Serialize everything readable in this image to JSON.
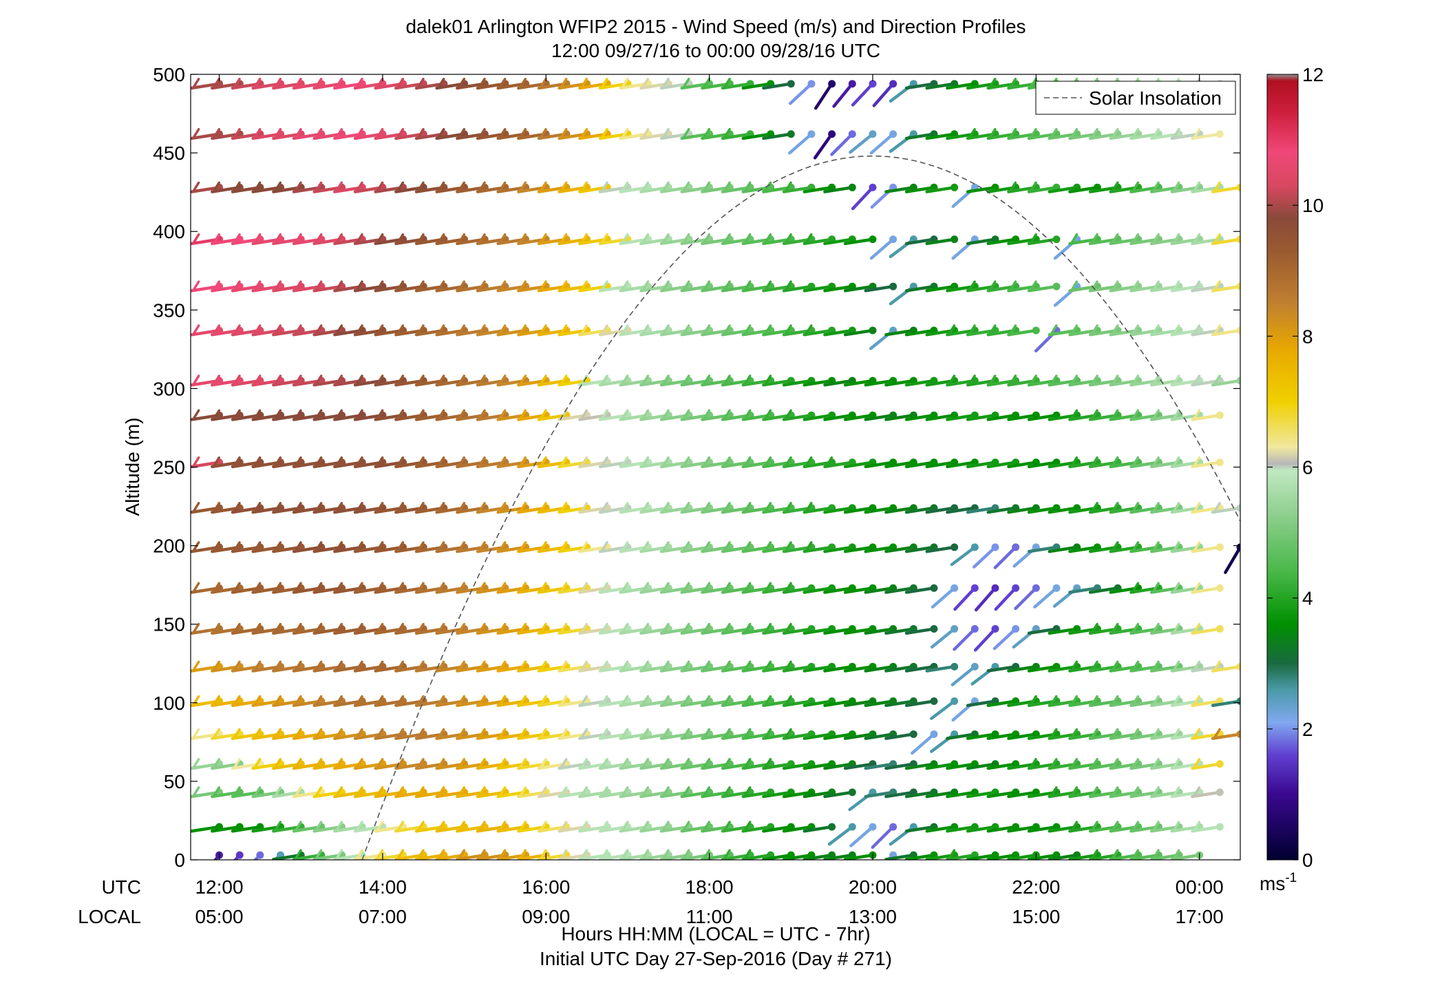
{
  "chart_data": {
    "type": "wind-barb profile",
    "title": "dalek01 Arlington WFIP2 2015 - Wind Speed (m/s) and Direction Profiles",
    "subtitle": "12:00 09/27/16 to 00:00 09/28/16  UTC",
    "ylabel": "Altitude (m)",
    "xlabel": "Hours HH:MM  (LOCAL = UTC - 7hr)",
    "xlabel2": "Initial UTC Day 27-Sep-2016 (Day # 271)",
    "utc_label": "UTC",
    "local_label": "LOCAL",
    "xlim": [
      11.65,
      24.5
    ],
    "ylim": [
      0,
      500
    ],
    "yticks": [
      0,
      50,
      100,
      150,
      200,
      250,
      300,
      350,
      400,
      450,
      500
    ],
    "xticks": [
      12,
      14,
      16,
      18,
      20,
      22,
      24
    ],
    "xticks_utc": [
      "12:00",
      "14:00",
      "16:00",
      "18:00",
      "20:00",
      "22:00",
      "00:00"
    ],
    "xticks_local": [
      "05:00",
      "07:00",
      "09:00",
      "11:00",
      "13:00",
      "15:00",
      "17:00"
    ],
    "legend": {
      "label": "Solar Insolation",
      "position": "top-right"
    },
    "colorbar": {
      "range": [
        0,
        12
      ],
      "ticks": [
        0,
        2,
        4,
        6,
        8,
        10,
        12
      ],
      "unit": "ms",
      "unit_superscript": "-1",
      "stops": [
        {
          "v": 0.0,
          "c": "#000030"
        },
        {
          "v": 1.0,
          "c": "#3a0890"
        },
        {
          "v": 1.6,
          "c": "#6040d0"
        },
        {
          "v": 2.1,
          "c": "#80a8f0"
        },
        {
          "v": 2.6,
          "c": "#4a9aa8"
        },
        {
          "v": 3.0,
          "c": "#1a6a40"
        },
        {
          "v": 3.6,
          "c": "#009000"
        },
        {
          "v": 4.4,
          "c": "#48b848"
        },
        {
          "v": 5.3,
          "c": "#90d090"
        },
        {
          "v": 5.95,
          "c": "#c0e8c0"
        },
        {
          "v": 6.05,
          "c": "#b8b8b8"
        },
        {
          "v": 6.3,
          "c": "#f0e8a0"
        },
        {
          "v": 7.0,
          "c": "#f0d000"
        },
        {
          "v": 7.8,
          "c": "#e8a800"
        },
        {
          "v": 8.5,
          "c": "#c08030"
        },
        {
          "v": 9.3,
          "c": "#9a5a30"
        },
        {
          "v": 9.8,
          "c": "#8a4a3a"
        },
        {
          "v": 10.3,
          "c": "#d84860"
        },
        {
          "v": 10.8,
          "c": "#f04878"
        },
        {
          "v": 11.4,
          "c": "#d02040"
        },
        {
          "v": 11.9,
          "c": "#b01020"
        },
        {
          "v": 12.0,
          "c": "#909090"
        }
      ]
    },
    "solar_insolation": {
      "sunrise_hour": 13.75,
      "peak_hour": 20.0,
      "peak_altitude": 448,
      "style": "dashed"
    },
    "altitudes": [
      3,
      21,
      43,
      61,
      80,
      101,
      123,
      147,
      173,
      199,
      224,
      253,
      283,
      305,
      337,
      365,
      395,
      428,
      462,
      494
    ],
    "time_start_hour": 12.0,
    "time_step_hours": 0.25,
    "wind_speed_rows": [
      [
        1.2,
        1.5,
        1.8,
        2.5,
        3.2,
        4.2,
        5.0,
        5.8,
        6.4,
        6.8,
        7.4,
        7.6,
        7.8,
        8.2,
        8.2,
        8.0,
        7.6,
        6.8,
        6.2,
        5.8,
        5.8,
        5.6,
        5.4,
        5.2,
        5.0,
        4.6,
        4.2,
        4.0,
        3.6,
        3.6,
        3.4,
        3.4,
        3.6,
        2.2,
        3.2,
        3.6,
        3.8,
        4.0,
        3.6,
        3.6,
        3.8,
        3.6,
        3.4,
        3.8,
        4.0,
        4.4,
        4.6,
        4.8,
        5.0
      ],
      [
        3.6,
        3.6,
        3.6,
        3.8,
        4.2,
        4.8,
        5.2,
        5.6,
        5.8,
        6.4,
        6.8,
        7.2,
        7.4,
        7.4,
        7.6,
        7.4,
        7.0,
        6.6,
        6.2,
        5.8,
        5.8,
        5.6,
        5.4,
        5.2,
        4.8,
        4.6,
        4.2,
        4.0,
        3.6,
        3.6,
        3.2,
        2.6,
        2.2,
        1.8,
        2.6,
        3.2,
        3.6,
        3.8,
        3.8,
        3.6,
        3.6,
        3.6,
        3.8,
        4.0,
        4.4,
        4.6,
        4.8,
        5.2,
        5.6,
        5.8
      ],
      [
        5.0,
        4.6,
        4.6,
        5.0,
        5.6,
        6.4,
        7.0,
        7.4,
        7.4,
        7.6,
        7.8,
        7.8,
        7.8,
        7.6,
        7.4,
        7.0,
        6.6,
        6.2,
        5.8,
        5.6,
        5.6,
        5.4,
        5.2,
        5.0,
        4.6,
        4.4,
        4.2,
        4.0,
        3.8,
        3.6,
        3.4,
        3.2,
        2.6,
        2.8,
        3.0,
        3.2,
        3.4,
        3.6,
        3.8,
        3.6,
        3.6,
        3.8,
        4.0,
        4.2,
        4.6,
        4.8,
        5.0,
        5.4,
        5.8,
        6.1
      ],
      [
        5.4,
        5.2,
        6.3,
        7.0,
        7.4,
        7.6,
        7.6,
        7.8,
        8.0,
        8.2,
        8.4,
        8.4,
        8.2,
        8.0,
        7.6,
        7.2,
        6.8,
        6.4,
        6.0,
        5.8,
        5.6,
        5.4,
        5.2,
        5.0,
        4.8,
        4.6,
        4.4,
        4.2,
        4.0,
        3.8,
        3.6,
        3.4,
        3.0,
        2.8,
        3.0,
        3.4,
        3.6,
        3.6,
        3.4,
        3.6,
        3.8,
        4.0,
        4.2,
        4.4,
        4.6,
        4.8,
        5.0,
        5.4,
        5.8,
        6.8
      ],
      [
        6.4,
        6.8,
        7.2,
        7.4,
        7.6,
        7.8,
        8.0,
        8.2,
        8.4,
        8.6,
        8.6,
        8.6,
        8.4,
        8.2,
        8.0,
        7.6,
        7.2,
        6.8,
        6.4,
        6.0,
        5.8,
        5.6,
        5.4,
        5.2,
        5.0,
        4.8,
        4.6,
        4.4,
        4.2,
        4.0,
        3.8,
        3.6,
        3.4,
        3.2,
        3.0,
        2.2,
        2.6,
        3.2,
        3.6,
        3.6,
        3.6,
        3.8,
        4.0,
        4.2,
        4.6,
        4.8,
        5.0,
        5.4,
        5.8,
        6.8,
        8.4
      ],
      [
        7.4,
        7.6,
        7.8,
        8.0,
        8.2,
        8.4,
        8.6,
        8.8,
        8.8,
        8.8,
        8.8,
        8.6,
        8.4,
        8.2,
        8.0,
        7.6,
        7.2,
        6.8,
        6.4,
        6.0,
        5.8,
        5.6,
        5.4,
        5.2,
        5.0,
        4.8,
        4.6,
        4.4,
        4.2,
        4.0,
        3.8,
        3.6,
        3.4,
        3.4,
        3.2,
        3.0,
        2.6,
        2.2,
        3.0,
        3.6,
        3.8,
        4.0,
        4.2,
        4.4,
        4.6,
        4.8,
        5.0,
        5.4,
        5.8,
        6.6,
        2.8
      ],
      [
        8.0,
        8.2,
        8.4,
        8.6,
        8.6,
        8.8,
        8.8,
        9.0,
        9.0,
        9.0,
        8.8,
        8.6,
        8.4,
        8.2,
        8.0,
        7.8,
        7.4,
        7.0,
        6.6,
        6.2,
        5.8,
        5.6,
        5.4,
        5.2,
        5.0,
        4.8,
        4.6,
        4.4,
        4.2,
        4.0,
        3.8,
        3.6,
        3.6,
        3.4,
        3.2,
        3.0,
        2.8,
        2.4,
        2.6,
        3.0,
        3.4,
        3.6,
        3.8,
        4.0,
        4.2,
        4.4,
        4.6,
        4.8,
        5.4,
        6.0,
        6.6
      ],
      [
        8.8,
        8.8,
        9.0,
        9.0,
        9.0,
        9.0,
        9.2,
        9.2,
        9.2,
        9.0,
        9.0,
        8.8,
        8.6,
        8.4,
        8.2,
        8.0,
        7.6,
        7.2,
        6.8,
        6.2,
        5.8,
        5.6,
        5.4,
        5.2,
        5.0,
        4.8,
        4.6,
        4.4,
        4.2,
        4.0,
        3.8,
        3.6,
        3.6,
        3.4,
        3.2,
        3.0,
        2.4,
        1.8,
        1.6,
        2.0,
        2.4,
        3.0,
        3.6,
        3.8,
        4.0,
        4.2,
        4.6,
        5.0,
        5.6,
        6.6
      ],
      [
        9.0,
        9.0,
        9.2,
        9.2,
        9.2,
        9.4,
        9.4,
        9.4,
        9.2,
        9.2,
        9.0,
        8.8,
        8.6,
        8.4,
        8.2,
        8.0,
        7.6,
        7.2,
        6.8,
        6.2,
        5.8,
        5.6,
        5.4,
        5.2,
        5.0,
        4.8,
        4.6,
        4.4,
        4.2,
        4.0,
        3.8,
        3.6,
        3.6,
        3.4,
        3.2,
        3.0,
        2.2,
        1.6,
        1.4,
        1.6,
        1.8,
        2.2,
        2.4,
        2.8,
        3.2,
        3.6,
        4.0,
        4.6,
        5.4,
        6.4
      ],
      [
        9.4,
        9.4,
        9.4,
        9.4,
        9.4,
        9.6,
        9.6,
        9.6,
        9.4,
        9.4,
        9.2,
        9.0,
        8.8,
        8.6,
        8.4,
        8.2,
        7.8,
        7.4,
        7.0,
        6.4,
        6.0,
        5.8,
        5.6,
        5.4,
        5.2,
        5.0,
        4.8,
        4.6,
        4.4,
        4.2,
        4.0,
        3.8,
        3.6,
        3.6,
        3.4,
        3.2,
        3.0,
        2.6,
        2.0,
        1.8,
        2.2,
        2.8,
        3.4,
        3.6,
        3.8,
        4.0,
        4.4,
        4.8,
        5.4,
        6.4,
        0.3
      ],
      [
        9.4,
        9.4,
        9.6,
        9.6,
        9.6,
        9.6,
        9.6,
        9.6,
        9.6,
        9.4,
        9.4,
        9.2,
        9.0,
        8.8,
        8.4,
        8.2,
        7.8,
        7.4,
        7.0,
        6.2,
        6.0,
        5.8,
        5.6,
        5.4,
        5.2,
        5.0,
        4.8,
        4.6,
        4.4,
        4.2,
        4.0,
        3.8,
        3.6,
        3.6,
        3.4,
        3.2,
        3.0,
        3.0,
        2.8,
        3.2,
        3.4,
        3.6,
        3.6,
        3.8,
        4.0,
        4.2,
        4.6,
        5.0,
        5.6,
        6.4,
        6.0
      ],
      [
        10.3,
        9.6,
        9.6,
        9.6,
        9.6,
        9.6,
        9.6,
        9.6,
        9.6,
        9.6,
        9.4,
        9.2,
        9.0,
        8.8,
        8.6,
        8.4,
        8.0,
        7.4,
        6.8,
        6.2,
        6.0,
        5.8,
        5.6,
        5.4,
        5.2,
        5.0,
        4.8,
        4.6,
        4.4,
        4.2,
        4.0,
        4.0,
        3.8,
        3.6,
        3.6,
        3.6,
        3.6,
        3.6,
        3.8,
        3.8,
        3.6,
        3.6,
        3.8,
        4.0,
        4.2,
        4.4,
        4.8,
        5.2,
        5.6,
        6.4
      ],
      [
        9.8,
        9.8,
        9.8,
        9.8,
        9.8,
        9.8,
        9.8,
        9.8,
        9.8,
        9.6,
        9.4,
        9.2,
        9.0,
        8.8,
        8.6,
        8.2,
        7.8,
        7.2,
        6.2,
        6.1,
        5.8,
        5.6,
        5.4,
        5.2,
        5.0,
        4.8,
        4.6,
        4.4,
        4.2,
        4.0,
        3.8,
        3.6,
        3.6,
        3.4,
        3.4,
        3.6,
        3.6,
        3.8,
        3.8,
        3.6,
        3.6,
        3.6,
        3.8,
        4.0,
        4.2,
        4.4,
        4.8,
        5.2,
        5.6,
        6.4
      ],
      [
        10.6,
        10.6,
        10.4,
        10.4,
        10.2,
        10.2,
        10.0,
        10.0,
        9.8,
        9.6,
        9.4,
        9.2,
        9.0,
        8.8,
        8.6,
        8.4,
        8.0,
        7.4,
        7.0,
        5.8,
        5.6,
        5.4,
        5.2,
        5.0,
        4.8,
        4.6,
        4.4,
        4.2,
        4.0,
        3.8,
        3.6,
        3.4,
        3.6,
        3.6,
        3.6,
        3.8,
        3.8,
        4.0,
        4.0,
        4.2,
        4.2,
        4.4,
        4.6,
        4.8,
        5.0,
        5.2,
        5.4,
        5.6,
        5.8,
        6.0,
        5.4
      ],
      [
        10.6,
        10.6,
        10.4,
        10.4,
        10.2,
        10.2,
        10.0,
        9.8,
        9.6,
        9.4,
        9.2,
        9.0,
        8.8,
        8.6,
        8.4,
        8.2,
        8.0,
        7.6,
        7.2,
        6.6,
        6.2,
        5.8,
        5.6,
        5.4,
        5.2,
        5.0,
        4.8,
        4.6,
        4.4,
        4.2,
        4.0,
        3.8,
        3.4,
        2.4,
        3.4,
        3.6,
        3.8,
        4.0,
        4.2,
        4.2,
        4.4,
        1.8,
        4.6,
        4.8,
        5.0,
        5.2,
        5.4,
        5.6,
        5.8,
        6.0,
        6.4
      ],
      [
        10.8,
        10.8,
        10.6,
        10.6,
        10.4,
        10.4,
        10.2,
        10.0,
        9.8,
        9.6,
        9.4,
        9.2,
        9.0,
        8.8,
        8.6,
        8.4,
        8.2,
        7.8,
        7.4,
        7.0,
        5.8,
        5.6,
        5.4,
        5.2,
        5.0,
        4.8,
        4.6,
        4.4,
        4.2,
        4.0,
        3.8,
        3.6,
        3.4,
        3.0,
        2.6,
        3.2,
        3.6,
        3.8,
        4.0,
        4.2,
        4.4,
        4.6,
        2.2,
        4.8,
        5.0,
        5.2,
        5.4,
        5.6,
        5.8,
        6.0,
        6.6
      ],
      [
        11.0,
        10.8,
        10.8,
        10.6,
        10.6,
        10.6,
        10.4,
        10.2,
        10.0,
        9.8,
        9.6,
        9.4,
        9.2,
        9.0,
        8.8,
        8.6,
        8.4,
        8.0,
        7.6,
        7.2,
        6.8,
        5.8,
        5.6,
        5.4,
        5.2,
        5.0,
        4.8,
        4.6,
        4.4,
        4.2,
        4.0,
        3.8,
        3.6,
        2.2,
        2.6,
        3.0,
        3.4,
        2.2,
        3.2,
        3.6,
        3.8,
        4.0,
        2.2,
        4.4,
        4.6,
        4.8,
        5.0,
        5.2,
        5.4,
        5.6,
        6.8
      ],
      [
        10.0,
        9.8,
        9.8,
        9.8,
        9.8,
        10.0,
        10.2,
        10.4,
        10.2,
        10.0,
        9.8,
        9.6,
        9.4,
        9.2,
        9.0,
        8.8,
        8.4,
        8.0,
        7.6,
        7.2,
        6.0,
        5.8,
        5.6,
        5.4,
        5.2,
        5.0,
        4.8,
        4.6,
        4.4,
        4.2,
        3.6,
        3.4,
        1.6,
        2.0,
        3.4,
        3.6,
        3.8,
        2.2,
        3.6,
        3.8,
        4.0,
        4.2,
        3.8,
        3.6,
        3.8,
        4.0,
        4.4,
        4.8,
        5.2,
        5.6,
        6.8
      ],
      [
        10.0,
        10.0,
        10.2,
        10.4,
        10.4,
        10.6,
        10.6,
        10.8,
        10.6,
        10.4,
        10.2,
        10.0,
        9.8,
        9.6,
        9.4,
        9.2,
        9.0,
        8.6,
        8.2,
        7.8,
        7.0,
        6.4,
        6.2,
        6.0,
        4.6,
        4.4,
        4.2,
        3.6,
        3.2,
        2.2,
        0.8,
        1.8,
        2.4,
        2.2,
        2.6,
        3.2,
        3.6,
        3.8,
        4.0,
        4.2,
        4.4,
        4.6,
        4.8,
        5.0,
        5.2,
        5.4,
        5.6,
        5.8,
        6.0,
        6.3
      ],
      [
        10.0,
        10.0,
        10.2,
        10.4,
        10.4,
        10.6,
        10.6,
        10.8,
        10.6,
        10.4,
        10.2,
        10.0,
        9.8,
        9.6,
        9.4,
        9.2,
        9.0,
        8.6,
        8.2,
        7.8,
        7.0,
        6.4,
        6.2,
        6.0,
        4.6,
        4.4,
        4.2,
        3.6,
        3.0,
        2.0,
        0.6,
        1.2,
        1.6,
        1.4,
        2.6,
        3.0,
        3.2,
        3.6,
        3.8,
        4.0,
        4.2,
        4.4,
        4.6,
        4.8,
        5.0,
        5.2,
        5.4,
        5.6,
        5.8,
        6.0
      ]
    ]
  }
}
